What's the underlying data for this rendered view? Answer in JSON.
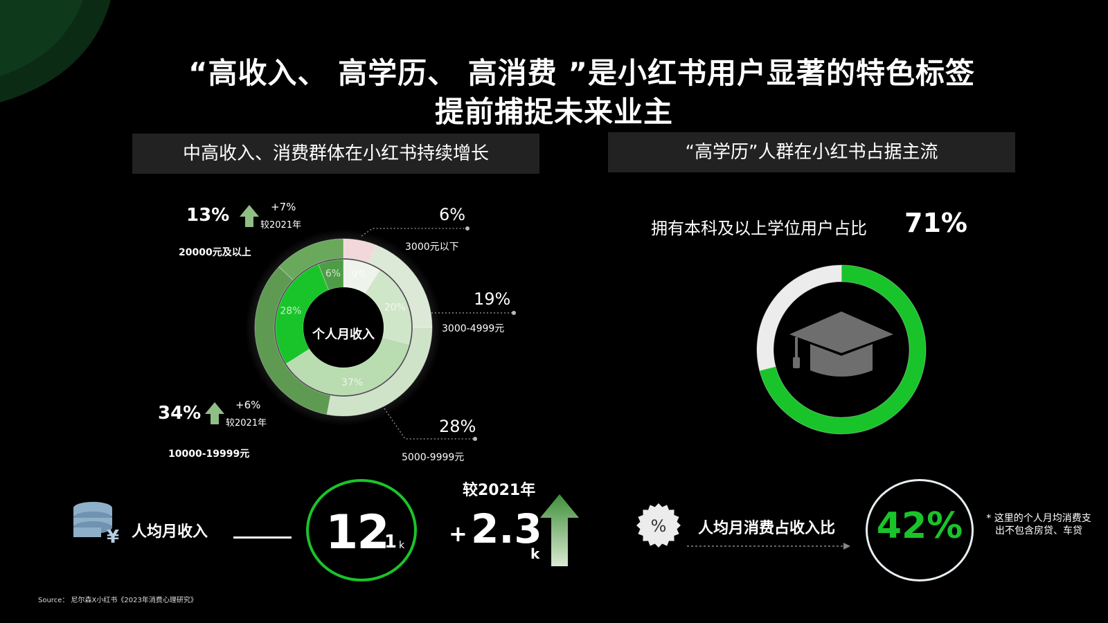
{
  "title": {
    "line1": "“高收入、 高学历、 高消费 ”是小红书用户显著的特色标签",
    "line2": "提前捕捉未来业主"
  },
  "left_panel": {
    "header": "中高收入、消费群体在小红书持续增长",
    "donut_center": "个人月收入",
    "callouts": {
      "high_pct": "13%",
      "high_change": "+7%",
      "high_compare": "较2021年",
      "high_label": "20000元及以上",
      "mid_pct": "34%",
      "mid_change": "+6%",
      "mid_compare": "较2021年",
      "mid_label": "10000-19999元",
      "low1_pct": "6%",
      "low1_label": "3000元以下",
      "low2_pct": "19%",
      "low2_label": "3000-4999元",
      "low3_pct": "28%",
      "low3_label": "5000-9999元"
    }
  },
  "right_panel": {
    "header": "“高学历”人群在小红书占据主流",
    "degree_label": "拥有本科及以上学位用户占比",
    "degree_value": "71%"
  },
  "bottom": {
    "income_label": "人均月收入",
    "income_main": "12",
    "income_decimal": ".1",
    "income_unit": "k",
    "change_label": "较2021年",
    "change_plus": "+",
    "change_value": "2.3",
    "change_unit": "k",
    "spend_label": "人均月消费占收入比",
    "spend_value": "42%",
    "spend_icon_text": "%",
    "note": "* 这里的个人月均消费支出不包含房贷、车贷"
  },
  "source": "Source： 尼尔森X小红书《2023年消费心理研究》",
  "colors": {
    "accent": "#19c42a",
    "background": "#000000",
    "header_bg": "#222222"
  },
  "chart_data": [
    {
      "type": "pie",
      "title": "个人月收入",
      "ring": "outer",
      "categories": [
        "3000元以下",
        "3000-4999元",
        "5000-9999元",
        "10000-19999元",
        "20000元及以上"
      ],
      "values": [
        6,
        19,
        28,
        34,
        13
      ]
    },
    {
      "type": "pie",
      "title": "个人月收入",
      "ring": "inner",
      "categories": [
        "3000元以下",
        "3000-4999元",
        "5000-9999元",
        "10000-19999元",
        "20000元及以上"
      ],
      "values": [
        9,
        20,
        37,
        28,
        6
      ]
    },
    {
      "type": "pie",
      "title": "拥有本科及以上学位用户占比",
      "categories": [
        "本科及以上",
        "其他"
      ],
      "values": [
        71,
        29
      ]
    }
  ]
}
